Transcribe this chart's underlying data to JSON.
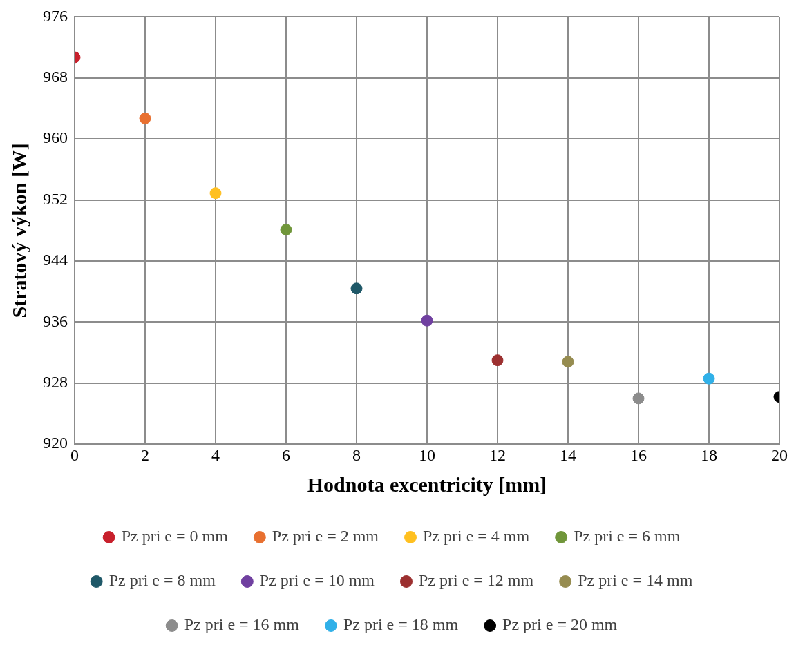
{
  "chart_data": {
    "type": "scatter",
    "xlabel": "Hodnota excentricity [mm]",
    "ylabel": "Stratový výkon [W]",
    "xlim": [
      0,
      20
    ],
    "xticks": [
      0,
      2,
      4,
      6,
      8,
      10,
      12,
      14,
      16,
      18,
      20
    ],
    "ylim": [
      920,
      976
    ],
    "yticks": [
      920,
      928,
      936,
      944,
      952,
      960,
      968,
      976
    ],
    "grid": true,
    "legend": "bottom",
    "marker": "circle",
    "series": [
      {
        "name": "Pz pri e = 0 mm",
        "color": "#c8202c",
        "x": [
          0
        ],
        "values": [
          970.7
        ]
      },
      {
        "name": "Pz pri e = 2 mm",
        "color": "#e87030",
        "x": [
          2
        ],
        "values": [
          962.7
        ]
      },
      {
        "name": "Pz pri e = 4 mm",
        "color": "#ffc020",
        "x": [
          4
        ],
        "values": [
          952.9
        ]
      },
      {
        "name": "Pz pri e = 6 mm",
        "color": "#70963a",
        "x": [
          6
        ],
        "values": [
          948.1
        ]
      },
      {
        "name": "Pz pri e = 8 mm",
        "color": "#1f5868",
        "x": [
          8
        ],
        "values": [
          940.4
        ]
      },
      {
        "name": "Pz pri e = 10 mm",
        "color": "#7040a0",
        "x": [
          10
        ],
        "values": [
          936.2
        ]
      },
      {
        "name": "Pz pri e = 12 mm",
        "color": "#9c3030",
        "x": [
          12
        ],
        "values": [
          931.0
        ]
      },
      {
        "name": "Pz pri e = 14 mm",
        "color": "#968c50",
        "x": [
          14
        ],
        "values": [
          930.8
        ]
      },
      {
        "name": "Pz pri e = 16 mm",
        "color": "#8c8c8c",
        "x": [
          16
        ],
        "values": [
          926.0
        ]
      },
      {
        "name": "Pz pri e = 18 mm",
        "color": "#30b0e8",
        "x": [
          18
        ],
        "values": [
          928.6
        ]
      },
      {
        "name": "Pz pri e = 20 mm",
        "color": "#000000",
        "x": [
          20
        ],
        "values": [
          926.2
        ]
      }
    ]
  }
}
